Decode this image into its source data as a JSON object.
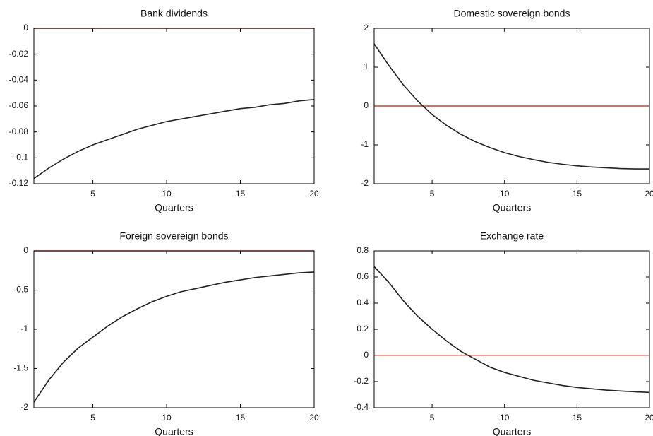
{
  "chart_data": [
    {
      "type": "line",
      "title": "Bank dividends",
      "xlabel": "Quarters",
      "x": [
        1,
        2,
        3,
        4,
        5,
        6,
        7,
        8,
        9,
        10,
        11,
        12,
        13,
        14,
        15,
        16,
        17,
        18,
        19,
        20
      ],
      "values": [
        -0.116,
        -0.108,
        -0.101,
        -0.095,
        -0.09,
        -0.086,
        -0.082,
        -0.078,
        -0.075,
        -0.072,
        -0.07,
        -0.068,
        -0.066,
        -0.064,
        -0.062,
        -0.061,
        -0.059,
        -0.058,
        -0.056,
        -0.055
      ],
      "color": "#222222",
      "reference_line": {
        "value": 0,
        "color": "#e8312a"
      },
      "xlim": [
        1,
        20
      ],
      "xticks": [
        5,
        10,
        15,
        20
      ],
      "ylim": [
        -0.12,
        0
      ],
      "yticks": [
        -0.12,
        -0.1,
        -0.08,
        -0.06,
        -0.04,
        -0.02,
        0
      ]
    },
    {
      "type": "line",
      "title": "Domestic sovereign bonds",
      "xlabel": "Quarters",
      "x": [
        1,
        2,
        3,
        4,
        5,
        6,
        7,
        8,
        9,
        10,
        11,
        12,
        13,
        14,
        15,
        16,
        17,
        18,
        19,
        20
      ],
      "values": [
        1.6,
        1.05,
        0.55,
        0.13,
        -0.22,
        -0.5,
        -0.73,
        -0.92,
        -1.07,
        -1.2,
        -1.3,
        -1.38,
        -1.45,
        -1.5,
        -1.54,
        -1.57,
        -1.59,
        -1.61,
        -1.62,
        -1.62
      ],
      "color": "#222222",
      "reference_line": {
        "value": 0,
        "color": "#e8312a"
      },
      "xlim": [
        1,
        20
      ],
      "xticks": [
        5,
        10,
        15,
        20
      ],
      "ylim": [
        -2,
        2
      ],
      "yticks": [
        -2,
        -1,
        0,
        1,
        2
      ]
    },
    {
      "type": "line",
      "title": "Foreign sovereign bonds",
      "xlabel": "Quarters",
      "x": [
        1,
        2,
        3,
        4,
        5,
        6,
        7,
        8,
        9,
        10,
        11,
        12,
        13,
        14,
        15,
        16,
        17,
        18,
        19,
        20
      ],
      "values": [
        -1.93,
        -1.65,
        -1.42,
        -1.24,
        -1.1,
        -0.96,
        -0.84,
        -0.74,
        -0.65,
        -0.58,
        -0.52,
        -0.48,
        -0.44,
        -0.4,
        -0.37,
        -0.34,
        -0.32,
        -0.3,
        -0.28,
        -0.27
      ],
      "color": "#222222",
      "reference_line": {
        "value": 0,
        "color": "#e8312a"
      },
      "xlim": [
        1,
        20
      ],
      "xticks": [
        5,
        10,
        15,
        20
      ],
      "ylim": [
        -2,
        0
      ],
      "yticks": [
        -2,
        -1.5,
        -1,
        -0.5,
        0
      ]
    },
    {
      "type": "line",
      "title": "Exchange rate",
      "xlabel": "Quarters",
      "x": [
        1,
        2,
        3,
        4,
        5,
        6,
        7,
        8,
        9,
        10,
        11,
        12,
        13,
        14,
        15,
        16,
        17,
        18,
        19,
        20
      ],
      "values": [
        0.68,
        0.56,
        0.42,
        0.3,
        0.2,
        0.11,
        0.03,
        -0.03,
        -0.09,
        -0.13,
        -0.16,
        -0.19,
        -0.21,
        -0.23,
        -0.245,
        -0.255,
        -0.265,
        -0.272,
        -0.278,
        -0.283
      ],
      "color": "#222222",
      "reference_line": {
        "value": 0,
        "color": "#f08070"
      },
      "xlim": [
        1,
        20
      ],
      "xticks": [
        5,
        10,
        15,
        20
      ],
      "ylim": [
        -0.4,
        0.8
      ],
      "yticks": [
        -0.4,
        -0.2,
        0,
        0.2,
        0.4,
        0.6,
        0.8
      ]
    }
  ]
}
